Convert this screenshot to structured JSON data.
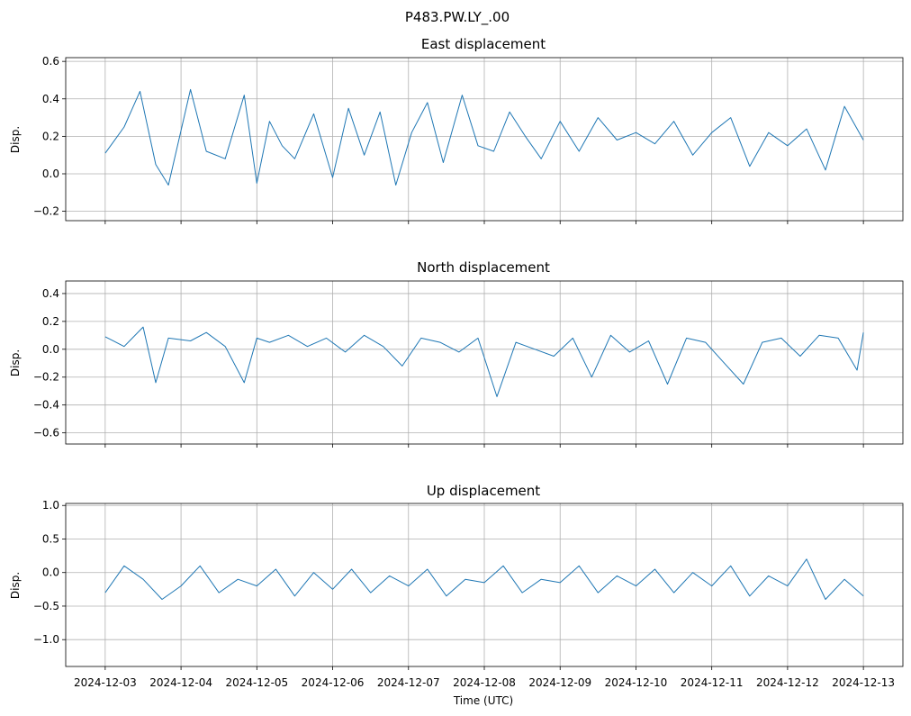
{
  "suptitle": "P483.PW.LY_.00",
  "xlabel": "Time (UTC)",
  "x_tick_labels": [
    "2024-12-03",
    "2024-12-04",
    "2024-12-05",
    "2024-12-06",
    "2024-12-07",
    "2024-12-08",
    "2024-12-09",
    "2024-12-10",
    "2024-12-11",
    "2024-12-12",
    "2024-12-13"
  ],
  "chart_data": [
    {
      "type": "line",
      "title": "East displacement",
      "ylabel": "Disp.",
      "xlim": [
        "2024-12-02T11:30",
        "2024-12-13T12:30"
      ],
      "ylim": [
        -0.25,
        0.62
      ],
      "yticks": [
        -0.2,
        0.0,
        0.2,
        0.4,
        0.6
      ],
      "ytick_labels": [
        "−0.2",
        "0.0",
        "0.2",
        "0.4",
        "0.6"
      ],
      "grid": true,
      "color": "#1f77b4",
      "series": [
        {
          "x": [
            "2024-12-03T00:00",
            "2024-12-03T06:00",
            "2024-12-03T11:00",
            "2024-12-03T16:00",
            "2024-12-03T20:00",
            "2024-12-04T03:00",
            "2024-12-04T08:00",
            "2024-12-04T14:00",
            "2024-12-04T20:00",
            "2024-12-05T00:00",
            "2024-12-05T04:00",
            "2024-12-05T08:00",
            "2024-12-05T12:00",
            "2024-12-05T18:00",
            "2024-12-06T00:00",
            "2024-12-06T05:00",
            "2024-12-06T10:00",
            "2024-12-06T15:00",
            "2024-12-06T20:00",
            "2024-12-07T01:00",
            "2024-12-07T06:00",
            "2024-12-07T11:00",
            "2024-12-07T17:00",
            "2024-12-07T22:00",
            "2024-12-08T03:00",
            "2024-12-08T08:00",
            "2024-12-08T13:00",
            "2024-12-08T18:00",
            "2024-12-09T00:00",
            "2024-12-09T06:00",
            "2024-12-09T12:00",
            "2024-12-09T18:00",
            "2024-12-10T00:00",
            "2024-12-10T06:00",
            "2024-12-10T12:00",
            "2024-12-10T18:00",
            "2024-12-11T00:00",
            "2024-12-11T06:00",
            "2024-12-11T12:00",
            "2024-12-11T18:00",
            "2024-12-12T00:00",
            "2024-12-12T06:00",
            "2024-12-12T12:00",
            "2024-12-12T18:00",
            "2024-12-13T00:00"
          ],
          "y": [
            0.11,
            0.25,
            0.44,
            0.05,
            -0.06,
            0.45,
            0.12,
            0.08,
            0.42,
            -0.05,
            0.28,
            0.15,
            0.08,
            0.32,
            -0.02,
            0.35,
            0.1,
            0.33,
            -0.06,
            0.22,
            0.38,
            0.06,
            0.42,
            0.15,
            0.12,
            0.33,
            0.2,
            0.08,
            0.28,
            0.12,
            0.3,
            0.18,
            0.22,
            0.16,
            0.28,
            0.1,
            0.22,
            0.3,
            0.04,
            0.22,
            0.15,
            0.24,
            0.02,
            0.36,
            0.18
          ]
        }
      ]
    },
    {
      "type": "line",
      "title": "North displacement",
      "ylabel": "Disp.",
      "xlim": [
        "2024-12-02T11:30",
        "2024-12-13T12:30"
      ],
      "ylim": [
        -0.68,
        0.49
      ],
      "yticks": [
        -0.6,
        -0.4,
        -0.2,
        0.0,
        0.2,
        0.4
      ],
      "ytick_labels": [
        "−0.6",
        "−0.4",
        "−0.2",
        "0.0",
        "0.2",
        "0.4"
      ],
      "grid": true,
      "color": "#1f77b4",
      "series": [
        {
          "x": [
            "2024-12-03T00:00",
            "2024-12-03T06:00",
            "2024-12-03T12:00",
            "2024-12-03T16:00",
            "2024-12-03T20:00",
            "2024-12-04T03:00",
            "2024-12-04T08:00",
            "2024-12-04T14:00",
            "2024-12-04T20:00",
            "2024-12-05T00:00",
            "2024-12-05T04:00",
            "2024-12-05T10:00",
            "2024-12-05T16:00",
            "2024-12-05T22:00",
            "2024-12-06T04:00",
            "2024-12-06T10:00",
            "2024-12-06T16:00",
            "2024-12-06T22:00",
            "2024-12-07T04:00",
            "2024-12-07T10:00",
            "2024-12-07T16:00",
            "2024-12-07T22:00",
            "2024-12-08T04:00",
            "2024-12-08T10:00",
            "2024-12-08T16:00",
            "2024-12-08T22:00",
            "2024-12-09T04:00",
            "2024-12-09T10:00",
            "2024-12-09T16:00",
            "2024-12-09T22:00",
            "2024-12-10T04:00",
            "2024-12-10T10:00",
            "2024-12-10T16:00",
            "2024-12-10T22:00",
            "2024-12-11T04:00",
            "2024-12-11T10:00",
            "2024-12-11T16:00",
            "2024-12-11T22:00",
            "2024-12-12T04:00",
            "2024-12-12T10:00",
            "2024-12-12T16:00",
            "2024-12-12T22:00",
            "2024-12-13T00:00"
          ],
          "y": [
            0.09,
            0.02,
            0.16,
            -0.24,
            0.08,
            0.06,
            0.12,
            0.02,
            -0.24,
            0.08,
            0.05,
            0.1,
            0.02,
            0.08,
            -0.02,
            0.1,
            0.02,
            -0.12,
            0.08,
            0.05,
            -0.02,
            0.08,
            -0.34,
            0.05,
            0.0,
            -0.05,
            0.08,
            -0.2,
            0.1,
            -0.02,
            0.06,
            -0.25,
            0.08,
            0.05,
            -0.1,
            -0.25,
            0.05,
            0.08,
            -0.05,
            0.1,
            0.08,
            -0.15,
            0.12
          ]
        }
      ]
    },
    {
      "type": "line",
      "title": "Up displacement",
      "ylabel": "Disp.",
      "xlim": [
        "2024-12-02T11:30",
        "2024-12-13T12:30"
      ],
      "ylim": [
        -1.4,
        1.03
      ],
      "yticks": [
        -1.0,
        -0.5,
        0.0,
        0.5,
        1.0
      ],
      "ytick_labels": [
        "−1.0",
        "−0.5",
        "0.0",
        "0.5",
        "1.0"
      ],
      "grid": true,
      "color": "#1f77b4",
      "series": [
        {
          "x": [
            "2024-12-03T00:00",
            "2024-12-03T06:00",
            "2024-12-03T12:00",
            "2024-12-03T18:00",
            "2024-12-04T00:00",
            "2024-12-04T06:00",
            "2024-12-04T12:00",
            "2024-12-04T18:00",
            "2024-12-05T00:00",
            "2024-12-05T06:00",
            "2024-12-05T12:00",
            "2024-12-05T18:00",
            "2024-12-06T00:00",
            "2024-12-06T06:00",
            "2024-12-06T12:00",
            "2024-12-06T18:00",
            "2024-12-07T00:00",
            "2024-12-07T06:00",
            "2024-12-07T12:00",
            "2024-12-07T18:00",
            "2024-12-08T00:00",
            "2024-12-08T06:00",
            "2024-12-08T12:00",
            "2024-12-08T18:00",
            "2024-12-09T00:00",
            "2024-12-09T06:00",
            "2024-12-09T12:00",
            "2024-12-09T18:00",
            "2024-12-10T00:00",
            "2024-12-10T06:00",
            "2024-12-10T12:00",
            "2024-12-10T18:00",
            "2024-12-11T00:00",
            "2024-12-11T06:00",
            "2024-12-11T12:00",
            "2024-12-11T18:00",
            "2024-12-12T00:00",
            "2024-12-12T06:00",
            "2024-12-12T12:00",
            "2024-12-12T18:00",
            "2024-12-13T00:00"
          ],
          "y": [
            -0.3,
            0.1,
            -0.1,
            -0.4,
            -0.2,
            0.1,
            -0.3,
            -0.1,
            -0.2,
            0.05,
            -0.35,
            0.0,
            -0.25,
            0.05,
            -0.3,
            -0.05,
            -0.2,
            0.05,
            -0.35,
            -0.1,
            -0.15,
            0.1,
            -0.3,
            -0.1,
            -0.15,
            0.1,
            -0.3,
            -0.05,
            -0.2,
            0.05,
            -0.3,
            0.0,
            -0.2,
            0.1,
            -0.35,
            -0.05,
            -0.2,
            0.2,
            -0.4,
            -0.1,
            -0.35
          ]
        }
      ]
    }
  ]
}
